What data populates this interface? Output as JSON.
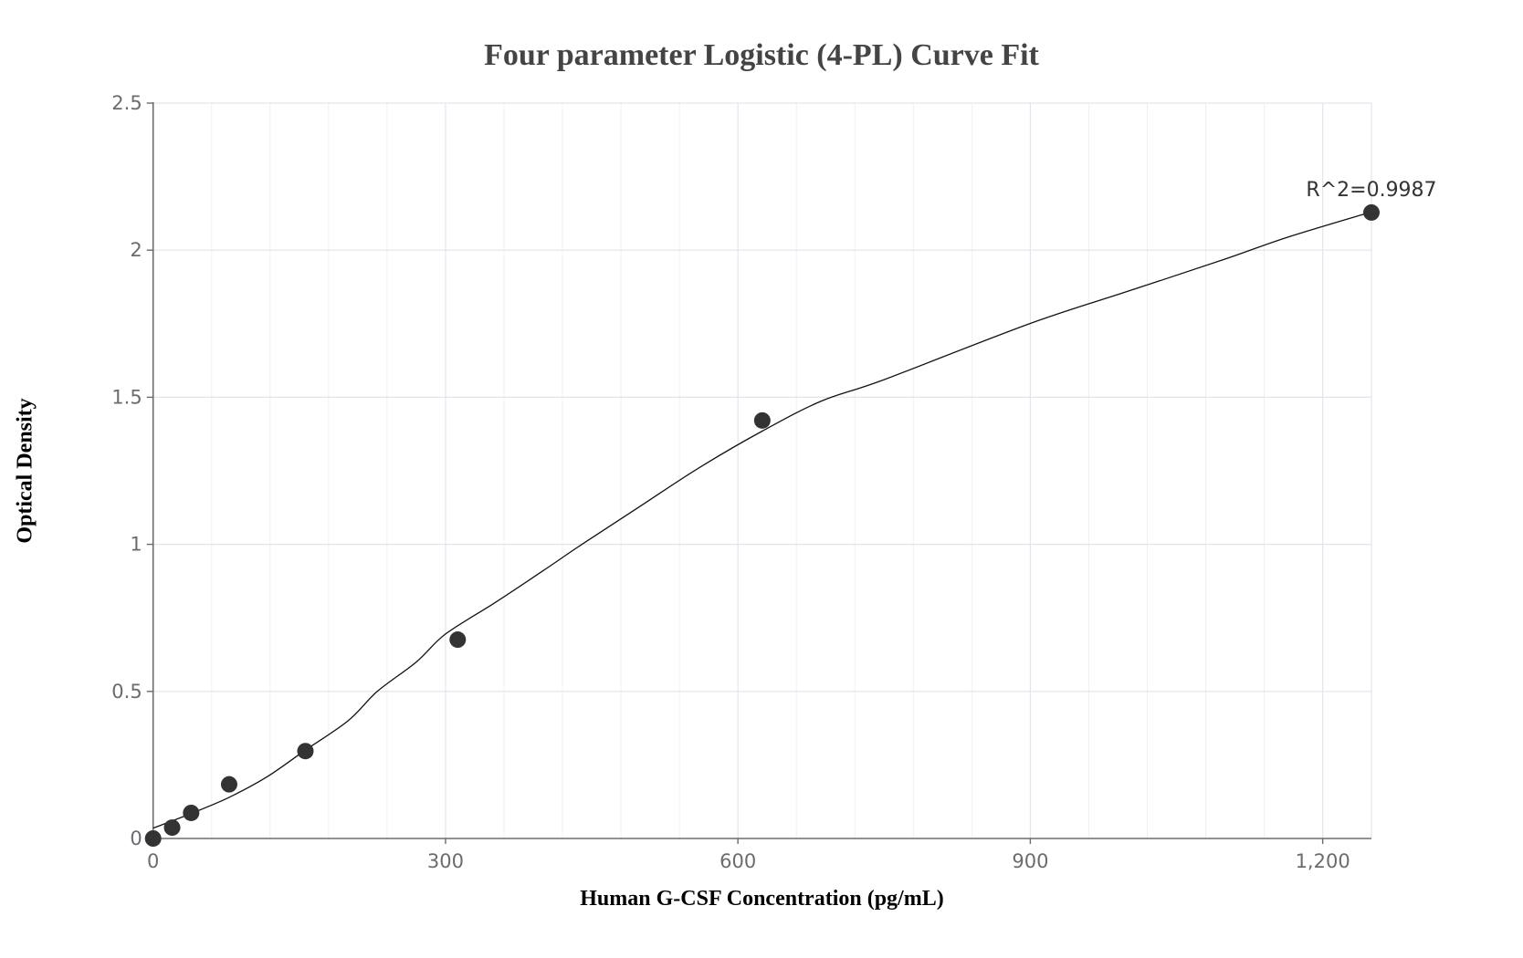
{
  "chart_data": {
    "type": "scatter",
    "title": "Four parameter Logistic (4-PL) Curve Fit",
    "xlabel": "Human G-CSF Concentration (pg/mL)",
    "ylabel": "Optical Density",
    "xlim": [
      0,
      1250
    ],
    "ylim": [
      0,
      2.5
    ],
    "x_ticks": [
      0,
      300,
      600,
      900,
      1200
    ],
    "x_tick_labels": [
      "0",
      "300",
      "600",
      "900",
      "1,200"
    ],
    "x_minor_step": 60,
    "y_ticks": [
      0,
      0.5,
      1,
      1.5,
      2,
      2.5
    ],
    "y_tick_labels": [
      "0",
      "0.5",
      "1",
      "1.5",
      "2",
      "2.5"
    ],
    "grid": true,
    "legend": "none",
    "series": [
      {
        "name": "Standards",
        "kind": "markers",
        "color": "#333333",
        "x": [
          0,
          19.5,
          39,
          78,
          156.25,
          312.5,
          625,
          1250
        ],
        "y": [
          0.0,
          0.037,
          0.087,
          0.184,
          0.297,
          0.676,
          1.421,
          2.128
        ]
      },
      {
        "name": "4-PL fit",
        "kind": "line",
        "color": "#111111",
        "x": [
          0,
          39,
          78,
          117,
          156,
          200,
          230,
          270,
          300,
          350,
          400,
          440,
          500,
          560,
          625,
          685,
          750,
          900,
          1000,
          1100,
          1164,
          1250
        ],
        "y": [
          0.035,
          0.085,
          0.14,
          0.21,
          0.3,
          0.4,
          0.5,
          0.6,
          0.695,
          0.8,
          0.91,
          1.0,
          1.13,
          1.26,
          1.385,
          1.486,
          1.56,
          1.751,
          1.86,
          1.97,
          2.044,
          2.13
        ]
      }
    ],
    "annotations": [
      {
        "text": "R^2=0.9987",
        "x": 1250,
        "y": 2.128
      }
    ]
  }
}
